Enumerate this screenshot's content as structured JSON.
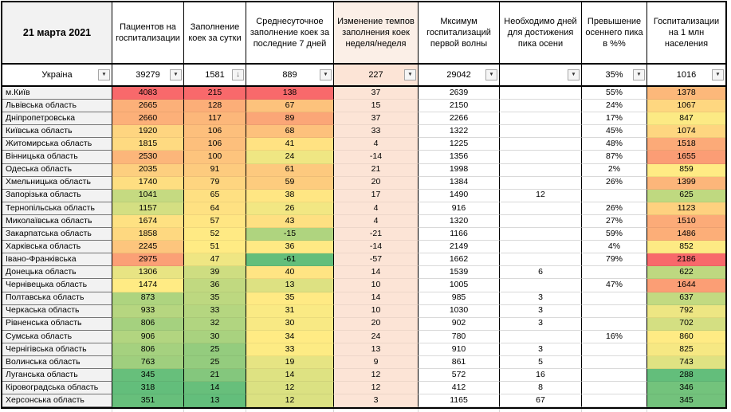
{
  "sheet_title": "21 марта 2021",
  "sorted_column": "beds_day",
  "columns": [
    {
      "key": "region",
      "label": "21 марта 2021"
    },
    {
      "key": "patients",
      "label": "Пациентов на госпитализации"
    },
    {
      "key": "beds_day",
      "label": "Заполнение коек за сутки"
    },
    {
      "key": "avg7",
      "label": "Среднесуточное заполнение коек за последние 7 дней"
    },
    {
      "key": "week_change",
      "label": "Изменение темпов заполнения коек неделя/неделя"
    },
    {
      "key": "first_wave_max",
      "label": "Мксимум госпитализаций первой волны"
    },
    {
      "key": "days_to_peak",
      "label": "Необходимо дней для достижения пика осени"
    },
    {
      "key": "peak_excess",
      "label": "Превышение осеннего пика в %%"
    },
    {
      "key": "per_million",
      "label": "Госпитализации на 1 млн населения"
    }
  ],
  "summary_row": {
    "region": "Украіна",
    "patients": "39279",
    "beds_day": "1581",
    "avg7": "889",
    "week_change": "227",
    "first_wave_max": "29042",
    "days_to_peak": "",
    "peak_excess": "35%",
    "per_million": "1016"
  },
  "rows": [
    {
      "region": "м.Київ",
      "patients": 4083,
      "beds_day": 215,
      "avg7": 138,
      "week_change": 37,
      "first_wave_max": 2639,
      "days_to_peak": "",
      "peak_excess": "55%",
      "per_million": 1378
    },
    {
      "region": "Львівська область",
      "patients": 2665,
      "beds_day": 128,
      "avg7": 67,
      "week_change": 15,
      "first_wave_max": 2150,
      "days_to_peak": "",
      "peak_excess": "24%",
      "per_million": 1067
    },
    {
      "region": "Дніпропетровська",
      "patients": 2660,
      "beds_day": 117,
      "avg7": 89,
      "week_change": 37,
      "first_wave_max": 2266,
      "days_to_peak": "",
      "peak_excess": "17%",
      "per_million": 847
    },
    {
      "region": "Київська область",
      "patients": 1920,
      "beds_day": 106,
      "avg7": 68,
      "week_change": 33,
      "first_wave_max": 1322,
      "days_to_peak": "",
      "peak_excess": "45%",
      "per_million": 1074
    },
    {
      "region": "Житомирська область",
      "patients": 1815,
      "beds_day": 106,
      "avg7": 41,
      "week_change": 4,
      "first_wave_max": 1225,
      "days_to_peak": "",
      "peak_excess": "48%",
      "per_million": 1518
    },
    {
      "region": "Вінницька область",
      "patients": 2530,
      "beds_day": 100,
      "avg7": 24,
      "week_change": -14,
      "first_wave_max": 1356,
      "days_to_peak": "",
      "peak_excess": "87%",
      "per_million": 1655
    },
    {
      "region": "Одеська область",
      "patients": 2035,
      "beds_day": 91,
      "avg7": 61,
      "week_change": 21,
      "first_wave_max": 1998,
      "days_to_peak": "",
      "peak_excess": "2%",
      "per_million": 859
    },
    {
      "region": "Хмельницька область",
      "patients": 1740,
      "beds_day": 79,
      "avg7": 59,
      "week_change": 20,
      "first_wave_max": 1384,
      "days_to_peak": "",
      "peak_excess": "26%",
      "per_million": 1399
    },
    {
      "region": "Запорізька область",
      "patients": 1041,
      "beds_day": 65,
      "avg7": 38,
      "week_change": 17,
      "first_wave_max": 1490,
      "days_to_peak": 12,
      "peak_excess": "",
      "per_million": 625
    },
    {
      "region": "Тернопільська область",
      "patients": 1157,
      "beds_day": 64,
      "avg7": 26,
      "week_change": 4,
      "first_wave_max": 916,
      "days_to_peak": "",
      "peak_excess": "26%",
      "per_million": 1123
    },
    {
      "region": "Миколаївська область",
      "patients": 1674,
      "beds_day": 57,
      "avg7": 43,
      "week_change": 4,
      "first_wave_max": 1320,
      "days_to_peak": "",
      "peak_excess": "27%",
      "per_million": 1510
    },
    {
      "region": "Закарпатська область",
      "patients": 1858,
      "beds_day": 52,
      "avg7": -15,
      "week_change": -21,
      "first_wave_max": 1166,
      "days_to_peak": "",
      "peak_excess": "59%",
      "per_million": 1486
    },
    {
      "region": "Харківська область",
      "patients": 2245,
      "beds_day": 51,
      "avg7": 36,
      "week_change": -14,
      "first_wave_max": 2149,
      "days_to_peak": "",
      "peak_excess": "4%",
      "per_million": 852
    },
    {
      "region": "Івано-Франківська",
      "patients": 2975,
      "beds_day": 47,
      "avg7": -61,
      "week_change": -57,
      "first_wave_max": 1662,
      "days_to_peak": "",
      "peak_excess": "79%",
      "per_million": 2186
    },
    {
      "region": "Донецька область",
      "patients": 1306,
      "beds_day": 39,
      "avg7": 40,
      "week_change": 14,
      "first_wave_max": 1539,
      "days_to_peak": 6,
      "peak_excess": "",
      "per_million": 622
    },
    {
      "region": "Чернівецька область",
      "patients": 1474,
      "beds_day": 36,
      "avg7": 13,
      "week_change": 10,
      "first_wave_max": 1005,
      "days_to_peak": "",
      "peak_excess": "47%",
      "per_million": 1644
    },
    {
      "region": "Полтавська область",
      "patients": 873,
      "beds_day": 35,
      "avg7": 35,
      "week_change": 14,
      "first_wave_max": 985,
      "days_to_peak": 3,
      "peak_excess": "",
      "per_million": 637
    },
    {
      "region": "Черкаська область",
      "patients": 933,
      "beds_day": 33,
      "avg7": 31,
      "week_change": 10,
      "first_wave_max": 1030,
      "days_to_peak": 3,
      "peak_excess": "",
      "per_million": 792
    },
    {
      "region": "Рівненська область",
      "patients": 806,
      "beds_day": 32,
      "avg7": 30,
      "week_change": 20,
      "first_wave_max": 902,
      "days_to_peak": 3,
      "peak_excess": "",
      "per_million": 702
    },
    {
      "region": "Сумська область",
      "patients": 906,
      "beds_day": 30,
      "avg7": 34,
      "week_change": 24,
      "first_wave_max": 780,
      "days_to_peak": "",
      "peak_excess": "16%",
      "per_million": 860
    },
    {
      "region": "Чернігівська область",
      "patients": 806,
      "beds_day": 25,
      "avg7": 33,
      "week_change": 13,
      "first_wave_max": 910,
      "days_to_peak": 3,
      "peak_excess": "",
      "per_million": 825
    },
    {
      "region": "Волинська область",
      "patients": 763,
      "beds_day": 25,
      "avg7": 19,
      "week_change": 9,
      "first_wave_max": 861,
      "days_to_peak": 5,
      "peak_excess": "",
      "per_million": 743
    },
    {
      "region": "Луганська область",
      "patients": 345,
      "beds_day": 21,
      "avg7": 14,
      "week_change": 12,
      "first_wave_max": 572,
      "days_to_peak": 16,
      "peak_excess": "",
      "per_million": 288
    },
    {
      "region": "Кіровоградська область",
      "patients": 318,
      "beds_day": 14,
      "avg7": 12,
      "week_change": 12,
      "first_wave_max": 412,
      "days_to_peak": 8,
      "peak_excess": "",
      "per_million": 346
    },
    {
      "region": "Херсонська область",
      "patients": 351,
      "beds_day": 13,
      "avg7": 12,
      "week_change": 3,
      "first_wave_max": 1165,
      "days_to_peak": 67,
      "peak_excess": "",
      "per_million": 345
    }
  ],
  "colors": {
    "scale": {
      "min": "#63BE7B",
      "mid": "#FFEB84",
      "max": "#F8696B"
    },
    "week_change_fill": "#FCE4D6",
    "week_change_header_fill": "#FBEFE7",
    "label_fill": "#F2F2F2",
    "grid_border": "#000000",
    "white_row_border": "#D9D9D9"
  },
  "icons": {
    "dropdown_glyph": "▼",
    "sorted_glyph": "↓"
  }
}
